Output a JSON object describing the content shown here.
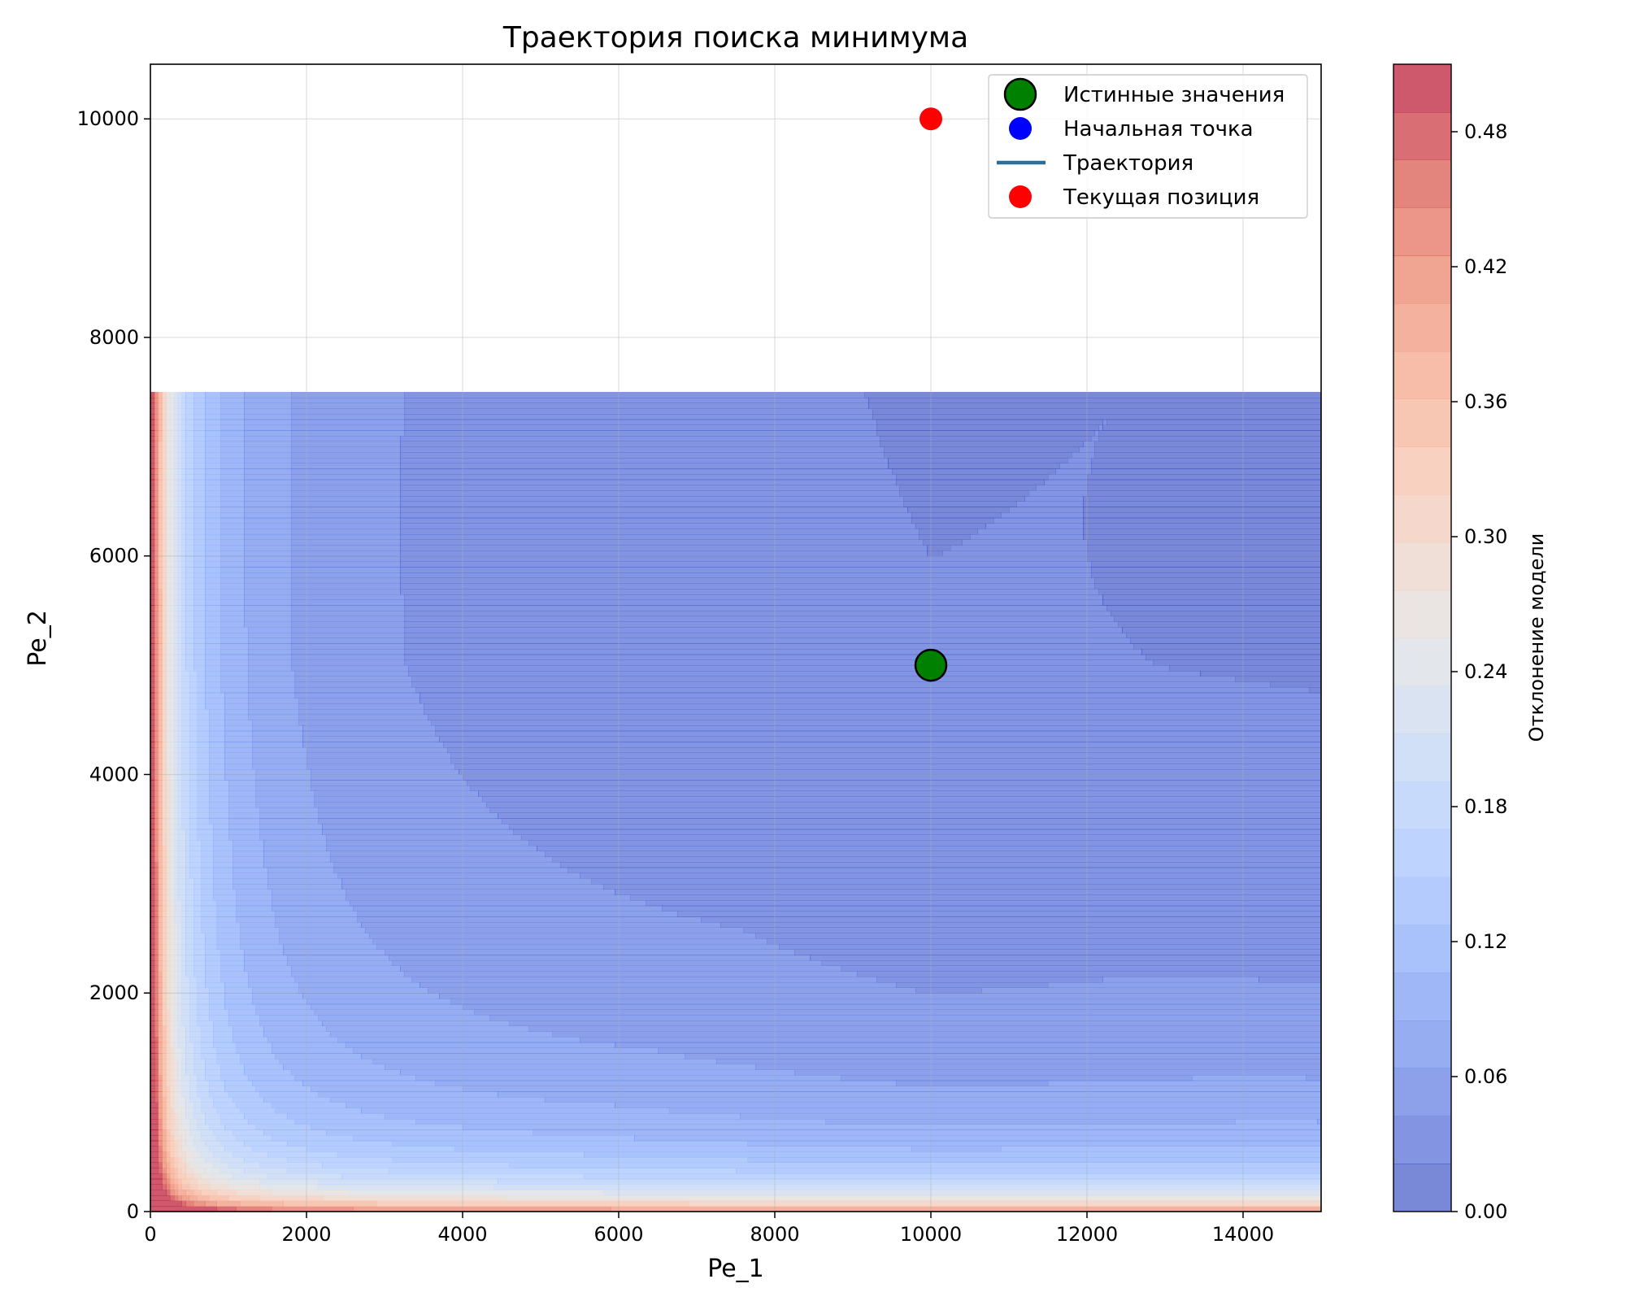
{
  "chart_data": {
    "type": "contour",
    "title": "Траектория поиска минимума",
    "xlabel": "Pe_1",
    "ylabel": "Pe_2",
    "xlim": [
      0,
      15000
    ],
    "ylim": [
      0,
      10500
    ],
    "xticks": [
      0,
      2000,
      4000,
      6000,
      8000,
      10000,
      12000,
      14000
    ],
    "yticks": [
      0,
      2000,
      4000,
      6000,
      8000,
      10000
    ],
    "grid": true,
    "contour_region": {
      "x": [
        0,
        15000
      ],
      "y": [
        0,
        7500
      ]
    },
    "colorbar": {
      "label": "Отклонение модели",
      "range": [
        0,
        0.51
      ],
      "ticks": [
        "0.00",
        "0.06",
        "0.12",
        "0.18",
        "0.24",
        "0.30",
        "0.36",
        "0.42",
        "0.48"
      ],
      "tick_values": [
        0,
        0.06,
        0.12,
        0.18,
        0.24,
        0.3,
        0.36,
        0.42,
        0.48
      ],
      "colormap": "coolwarm",
      "alpha": 0.7
    },
    "points": {
      "true_values": {
        "x": 10000,
        "y": 5000,
        "color": "#008000"
      },
      "current_position": {
        "x": 10000,
        "y": 10000,
        "color": "#ff0000"
      }
    },
    "legend": {
      "placement": "upper right",
      "entries": [
        {
          "label": "Истинные значения",
          "kind": "marker-large",
          "color": "#008000"
        },
        {
          "label": "Начальная точка",
          "kind": "marker",
          "color": "#0000ff"
        },
        {
          "label": "Траектория",
          "kind": "line",
          "color": "#2a6f97"
        },
        {
          "label": "Текущая позиция",
          "kind": "marker",
          "color": "#ff0000"
        }
      ]
    }
  }
}
